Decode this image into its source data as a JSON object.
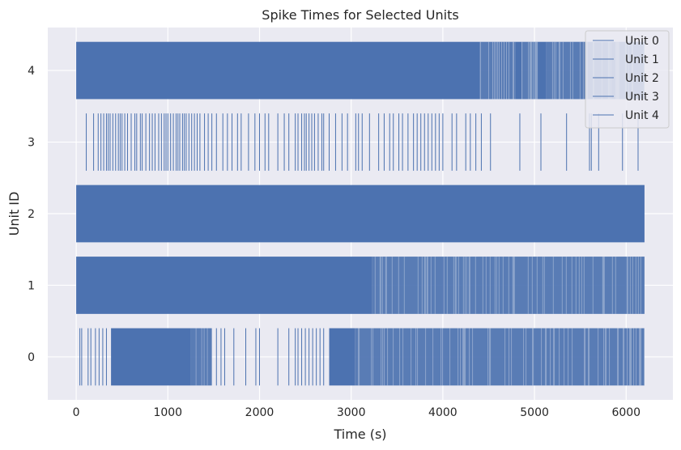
{
  "chart_data": {
    "type": "raster",
    "title": "Spike Times for Selected Units",
    "xlabel": "Time (s)",
    "ylabel": "Unit ID",
    "xlim": [
      -310,
      6510
    ],
    "ylim": [
      -0.6,
      4.6
    ],
    "xticks": [
      "0",
      "1000",
      "2000",
      "3000",
      "4000",
      "5000",
      "6000"
    ],
    "yticks": [
      "0",
      "1",
      "2",
      "3",
      "4"
    ],
    "grid": true,
    "legend_position": "top-right",
    "colors": {
      "spike": "#4c72b0",
      "background": "#eaeaf2",
      "grid": "#ffffff"
    },
    "series": [
      {
        "name": "Unit 0",
        "unit": 0,
        "range": [
          0,
          6200
        ],
        "dense_segments": [
          [
            380,
            1250
          ],
          [
            2760,
            3040
          ]
        ],
        "medium_segments": [
          [
            1250,
            1480
          ],
          [
            3040,
            6200
          ]
        ],
        "sparse_spikes": [
          40,
          60,
          130,
          160,
          210,
          250,
          290,
          330,
          1530,
          1580,
          1620,
          1720,
          1850,
          1960,
          2000,
          2200,
          2320,
          2390,
          2420,
          2460,
          2500,
          2540,
          2580,
          2620,
          2660,
          2700
        ]
      },
      {
        "name": "Unit 1",
        "unit": 1,
        "range": [
          0,
          6200
        ],
        "dense_segments": [
          [
            0,
            3230
          ]
        ],
        "medium_segments": [
          [
            3230,
            6200
          ]
        ],
        "sparse_spikes": []
      },
      {
        "name": "Unit 2",
        "unit": 2,
        "range": [
          0,
          6200
        ],
        "dense_segments": [
          [
            0,
            6200
          ]
        ],
        "medium_segments": [],
        "sparse_spikes": []
      },
      {
        "name": "Unit 3",
        "unit": 3,
        "range": [
          100,
          6130
        ],
        "dense_segments": [],
        "medium_segments": [],
        "sparse_spikes": [
          110,
          190,
          240,
          270,
          300,
          330,
          350,
          370,
          400,
          430,
          460,
          480,
          500,
          530,
          560,
          600,
          640,
          660,
          700,
          720,
          760,
          800,
          830,
          860,
          900,
          930,
          960,
          980,
          1000,
          1030,
          1060,
          1090,
          1110,
          1130,
          1160,
          1180,
          1200,
          1230,
          1260,
          1290,
          1320,
          1350,
          1400,
          1440,
          1480,
          1530,
          1600,
          1650,
          1700,
          1760,
          1800,
          1880,
          1950,
          2000,
          2060,
          2100,
          2200,
          2270,
          2320,
          2390,
          2420,
          2460,
          2490,
          2510,
          2540,
          2570,
          2600,
          2640,
          2680,
          2700,
          2760,
          2830,
          2900,
          2960,
          3050,
          3080,
          3120,
          3200,
          3300,
          3360,
          3420,
          3460,
          3520,
          3560,
          3620,
          3680,
          3720,
          3760,
          3800,
          3840,
          3880,
          3920,
          3960,
          4000,
          4100,
          4150,
          4250,
          4300,
          4360,
          4420,
          4520,
          4840,
          5070,
          5350,
          5600,
          5620,
          5700,
          5960,
          6130
        ]
      },
      {
        "name": "Unit 4",
        "unit": 4,
        "range": [
          0,
          6200
        ],
        "dense_segments": [
          [
            0,
            4400
          ],
          [
            4790,
            4860
          ],
          [
            5030,
            5130
          ]
        ],
        "medium_segments": [
          [
            4400,
            4790
          ],
          [
            4860,
            5030
          ],
          [
            5130,
            6200
          ]
        ],
        "sparse_spikes": []
      }
    ]
  }
}
